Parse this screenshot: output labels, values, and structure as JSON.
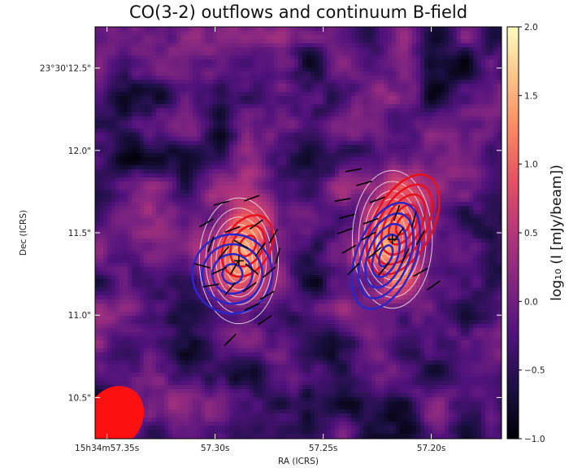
{
  "chart_data": {
    "type": "heatmap",
    "title": "CO(3-2) outflows and continuum B-field",
    "xlabel": "RA (ICRS)",
    "ylabel": "Dec (ICRS)",
    "x_axis": {
      "unit": "seconds of RA",
      "direction": "decreasing to the right",
      "range": [
        57.3555,
        57.1675
      ],
      "ticks": [
        {
          "value": 57.35,
          "label": "15h34m57.35s"
        },
        {
          "value": 57.3,
          "label": "57.30s"
        },
        {
          "value": 57.25,
          "label": "57.25s"
        },
        {
          "value": 57.2,
          "label": "57.20s"
        }
      ]
    },
    "y_axis": {
      "unit": "arcsec of Dec offset",
      "range": [
        10.25,
        12.75
      ],
      "ticks": [
        {
          "value": 10.5,
          "label": "10.5\""
        },
        {
          "value": 11.0,
          "label": "11.0\""
        },
        {
          "value": 11.5,
          "label": "11.5\""
        },
        {
          "value": 12.0,
          "label": "12.0\""
        },
        {
          "value": 12.5,
          "label": "23°30'12.5\""
        }
      ]
    },
    "colorbar": {
      "label": "log₁₀ (I [mJy/beam])",
      "range": [
        -1.0,
        2.0
      ],
      "colormap": "magma",
      "ticks": [
        {
          "value": 2.0,
          "label": "2.0"
        },
        {
          "value": 1.5,
          "label": "1.5"
        },
        {
          "value": 1.0,
          "label": "1.0"
        },
        {
          "value": 0.5,
          "label": "0.5"
        },
        {
          "value": 0.0,
          "label": "0.0"
        },
        {
          "value": -0.5,
          "label": "−0.5"
        },
        {
          "value": -1.0,
          "label": "−1.0"
        }
      ]
    },
    "sources": [
      {
        "ra": 57.289,
        "dec": 11.33,
        "peak": 1.5,
        "sigma_ra": 0.0115,
        "sigma_dec": 0.24
      },
      {
        "ra": 57.218,
        "dec": 11.46,
        "peak": 1.55,
        "sigma_ra": 0.0115,
        "sigma_dec": 0.26
      }
    ],
    "markers": [
      {
        "symbol": "+",
        "ra": 57.289,
        "dec": 11.33
      },
      {
        "symbol": "+",
        "ra": 57.218,
        "dec": 11.46
      }
    ],
    "continuum_contours": {
      "color": "#f3e6ea",
      "levels": [
        0.28,
        0.5,
        0.72,
        0.92,
        1.1,
        1.26,
        1.4
      ]
    },
    "outflow_contours": {
      "redshifted_color": "#e8101c",
      "blueshifted_color": "#2a26c8",
      "redshifted": [
        {
          "ra": 57.285,
          "dec": 11.42,
          "rx": 0.0105,
          "ry": 0.2,
          "rot": 30,
          "levels": 3
        },
        {
          "ra": 57.213,
          "dec": 11.55,
          "rx": 0.0135,
          "ry": 0.33,
          "rot": 28,
          "levels": 5
        }
      ],
      "blueshifted": [
        {
          "ra": 57.292,
          "dec": 11.25,
          "rx": 0.0185,
          "ry": 0.24,
          "rot": -18,
          "levels": 4
        },
        {
          "ra": 57.221,
          "dec": 11.36,
          "rx": 0.0135,
          "ry": 0.34,
          "rot": 22,
          "levels": 5
        }
      ]
    },
    "bfield_segments": [
      {
        "ra": 57.297,
        "dec": 11.68,
        "angle": 15
      },
      {
        "ra": 57.283,
        "dec": 11.71,
        "angle": 20
      },
      {
        "ra": 57.304,
        "dec": 11.56,
        "angle": 30
      },
      {
        "ra": 57.292,
        "dec": 11.52,
        "angle": 20
      },
      {
        "ra": 57.281,
        "dec": 11.55,
        "angle": 35
      },
      {
        "ra": 57.273,
        "dec": 11.48,
        "angle": 60
      },
      {
        "ra": 57.302,
        "dec": 11.43,
        "angle": 70
      },
      {
        "ra": 57.296,
        "dec": 11.38,
        "angle": 50
      },
      {
        "ra": 57.288,
        "dec": 11.43,
        "angle": -30
      },
      {
        "ra": 57.279,
        "dec": 11.4,
        "angle": 55
      },
      {
        "ra": 57.271,
        "dec": 11.36,
        "angle": 75
      },
      {
        "ra": 57.306,
        "dec": 11.3,
        "angle": -15
      },
      {
        "ra": 57.298,
        "dec": 11.27,
        "angle": 25
      },
      {
        "ra": 57.291,
        "dec": 11.29,
        "angle": 60
      },
      {
        "ra": 57.283,
        "dec": 11.28,
        "angle": -40
      },
      {
        "ra": 57.275,
        "dec": 11.26,
        "angle": 40
      },
      {
        "ra": 57.302,
        "dec": 11.18,
        "angle": 10
      },
      {
        "ra": 57.293,
        "dec": 11.16,
        "angle": 50
      },
      {
        "ra": 57.284,
        "dec": 11.17,
        "angle": 35
      },
      {
        "ra": 57.276,
        "dec": 11.12,
        "angle": 30
      },
      {
        "ra": 57.283,
        "dec": 11.05,
        "angle": 25
      },
      {
        "ra": 57.277,
        "dec": 10.97,
        "angle": 35
      },
      {
        "ra": 57.293,
        "dec": 10.85,
        "angle": 45
      },
      {
        "ra": 57.236,
        "dec": 11.88,
        "angle": 10
      },
      {
        "ra": 57.231,
        "dec": 11.8,
        "angle": 15
      },
      {
        "ra": 57.241,
        "dec": 11.7,
        "angle": 10
      },
      {
        "ra": 57.225,
        "dec": 11.7,
        "angle": 20
      },
      {
        "ra": 57.239,
        "dec": 11.6,
        "angle": 15
      },
      {
        "ra": 57.228,
        "dec": 11.57,
        "angle": 20
      },
      {
        "ra": 57.216,
        "dec": 11.62,
        "angle": 70
      },
      {
        "ra": 57.208,
        "dec": 11.58,
        "angle": 75
      },
      {
        "ra": 57.24,
        "dec": 11.51,
        "angle": 20
      },
      {
        "ra": 57.229,
        "dec": 11.48,
        "angle": 30
      },
      {
        "ra": 57.215,
        "dec": 11.49,
        "angle": 55
      },
      {
        "ra": 57.205,
        "dec": 11.47,
        "angle": 60
      },
      {
        "ra": 57.238,
        "dec": 11.4,
        "angle": 30
      },
      {
        "ra": 57.226,
        "dec": 11.38,
        "angle": 40
      },
      {
        "ra": 57.212,
        "dec": 11.36,
        "angle": 65
      },
      {
        "ra": 57.236,
        "dec": 11.28,
        "angle": 45
      },
      {
        "ra": 57.222,
        "dec": 11.28,
        "angle": 50
      },
      {
        "ra": 57.205,
        "dec": 11.26,
        "angle": 30
      },
      {
        "ra": 57.199,
        "dec": 11.18,
        "angle": 35
      }
    ],
    "beam": {
      "ra": 57.3465,
      "dec": 10.38,
      "bmaj": 0.2,
      "bmin": 0.0128,
      "pa": 35,
      "color": "#ff1010"
    }
  }
}
